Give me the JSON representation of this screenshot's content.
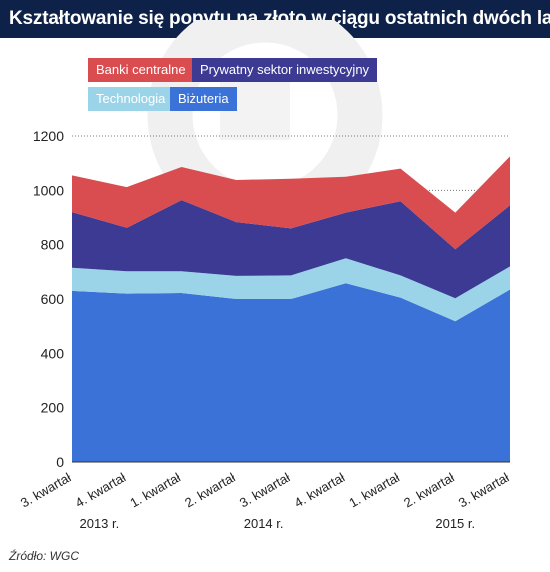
{
  "title": "Kształtowanie się popytu na złoto w ciągu ostatnich dwóch lat",
  "source": "Źródło: WGC",
  "legend": [
    {
      "label": "Banki centralne",
      "color": "#d94c4f"
    },
    {
      "label": "Prywatny sektor inwestycyjny",
      "color": "#3c3a92"
    },
    {
      "label": "Technologia",
      "color": "#9bd4e8"
    },
    {
      "label": "Biżuteria",
      "color": "#3a72d8"
    }
  ],
  "chart_data": {
    "type": "area",
    "stacked": true,
    "categories": [
      "3. kwartał",
      "4. kwartał",
      "1. kwartał",
      "2. kwartał",
      "3. kwartał",
      "4. kwartał",
      "1. kwartał",
      "2. kwartał",
      "3. kwartał"
    ],
    "year_labels": [
      {
        "label": "2013 r.",
        "index": 0.5
      },
      {
        "label": "2014 r.",
        "index": 3.5
      },
      {
        "label": "2015 r.",
        "index": 7
      }
    ],
    "series": [
      {
        "name": "Biżuteria",
        "color": "#3a72d8",
        "values": [
          630,
          620,
          622,
          600,
          600,
          658,
          605,
          518,
          635
        ]
      },
      {
        "name": "Technologia",
        "color": "#9bd4e8",
        "values": [
          85,
          82,
          80,
          85,
          87,
          92,
          82,
          85,
          85
        ]
      },
      {
        "name": "Prywatny sektor inwestycyjny",
        "color": "#3c3a92",
        "values": [
          205,
          160,
          262,
          198,
          173,
          168,
          273,
          180,
          225
        ]
      },
      {
        "name": "Banki centralne",
        "color": "#d94c4f",
        "values": [
          135,
          150,
          122,
          155,
          183,
          132,
          120,
          135,
          180
        ]
      }
    ],
    "ylim": [
      0,
      1200
    ],
    "yticks": [
      0,
      200,
      400,
      600,
      800,
      1000,
      1200
    ],
    "grid": true
  }
}
